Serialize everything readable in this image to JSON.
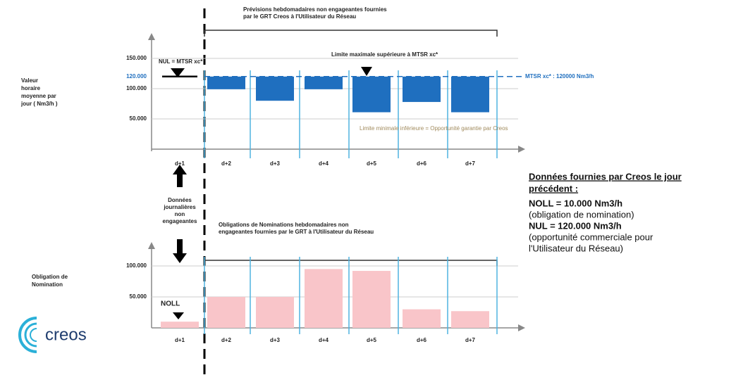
{
  "chart_data": [
    {
      "type": "floating-bar",
      "title": [
        "Prévisions hebdomadaires non engageantes fournies",
        "par le GRT Creos à l'Utilisateur du Réseau"
      ],
      "y_label": [
        "Valeur",
        "horaire",
        "moyenne par",
        "jour ( Nm3/h )"
      ],
      "categories": [
        "d+1",
        "d+2",
        "d+3",
        "d+4",
        "d+5",
        "d+6",
        "d+7"
      ],
      "values": [
        null,
        99000,
        80000,
        99000,
        61000,
        78000,
        61000
      ],
      "baseline": 120000,
      "nul_value": 120000,
      "nul_label": "NUL = MTSR  xc*",
      "mtsr_label": "MTSR  xc* : 120000 Nm3/h",
      "max_label": "Limite  maximale  supérieure  à MTSR  xc*",
      "min_label": "Limite  minimale   inférieure  = Opportunité  garantie par Creos",
      "color": "#1f6fbf",
      "ylim": [
        0,
        150000
      ],
      "yticks": [
        {
          "value": 50000,
          "label": "50.000"
        },
        {
          "value": 100000,
          "label": "100.000"
        },
        {
          "value": 120000,
          "label": "120.000"
        },
        {
          "value": 150000,
          "label": "150.000"
        }
      ],
      "grid": true
    },
    {
      "type": "bar",
      "title": [
        "Obligations de Nominations hebdomadaires non",
        "engageantes fournies par le GRT à l'Utilisateur du Réseau"
      ],
      "y_label": [
        "Obligation de",
        "Nomination"
      ],
      "categories": [
        "d+1",
        "d+2",
        "d+3",
        "d+4",
        "d+5",
        "d+6",
        "d+7"
      ],
      "values": [
        10000,
        50000,
        50000,
        95000,
        92000,
        30000,
        27000
      ],
      "noll_label": "NOLL",
      "color": "#f9c5c9",
      "ylim": [
        0,
        100000
      ],
      "yticks": [
        {
          "value": 50000,
          "label": "50.000"
        },
        {
          "value": 100000,
          "label": "100.000"
        }
      ],
      "grid": true
    }
  ],
  "middle_label": [
    "Données",
    "journalières",
    "non",
    "engageantes"
  ],
  "info": {
    "heading": [
      "Données fournies par Creos le jour",
      "précédent :"
    ],
    "lines": [
      "NOLL = 10.000  Nm3/h",
      "(obligation de nomination)",
      "NUL = 120.000  Nm3/h",
      "(opportunité  commerciale  pour",
      "l'Utilisateur du Réseau)"
    ]
  },
  "logo": "creos"
}
